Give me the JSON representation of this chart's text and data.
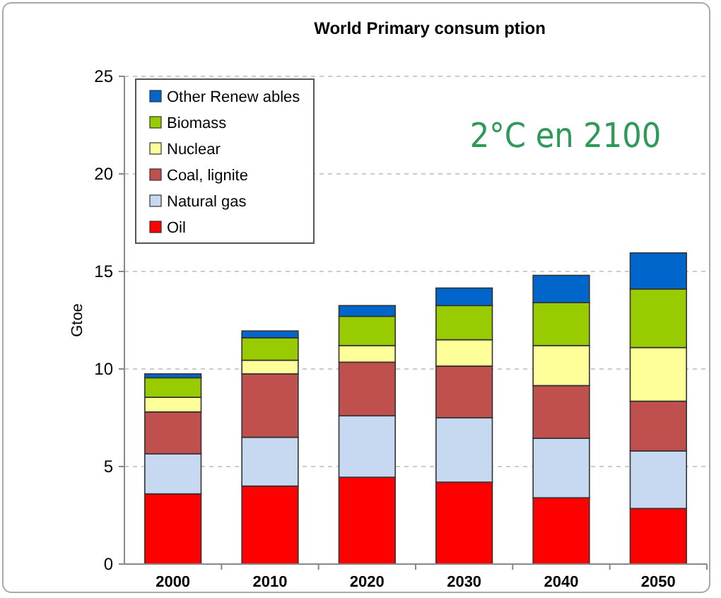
{
  "chart_data": {
    "type": "bar",
    "stacked": true,
    "title": "World Primary consum ption",
    "ylabel": "Gtoe",
    "annotations": [
      "2°C en 2100"
    ],
    "categories": [
      "2000",
      "2010",
      "2020",
      "2030",
      "2040",
      "2050"
    ],
    "series": [
      {
        "name": "Oil",
        "color": "#ff0000",
        "values": [
          3.6,
          4.0,
          4.45,
          4.2,
          3.4,
          2.85
        ]
      },
      {
        "name": "Natural gas",
        "color": "#c6d9f1",
        "values": [
          2.05,
          2.5,
          3.15,
          3.3,
          3.05,
          2.95
        ]
      },
      {
        "name": "Coal, lignite",
        "color": "#c0504d",
        "values": [
          2.15,
          3.25,
          2.75,
          2.65,
          2.7,
          2.55
        ]
      },
      {
        "name": "Nuclear",
        "color": "#ffff99",
        "values": [
          0.75,
          0.7,
          0.85,
          1.35,
          2.05,
          2.75
        ]
      },
      {
        "name": "Biomass",
        "color": "#99cc00",
        "values": [
          1.0,
          1.15,
          1.5,
          1.75,
          2.2,
          3.0
        ]
      },
      {
        "name": "Other Renew ables",
        "color": "#0066cc",
        "values": [
          0.2,
          0.35,
          0.55,
          0.9,
          1.4,
          1.85
        ]
      }
    ],
    "ylim": [
      0,
      25
    ],
    "yticks": [
      0,
      5,
      10,
      15,
      20,
      25
    ],
    "grid": "y",
    "legend": "top left"
  }
}
